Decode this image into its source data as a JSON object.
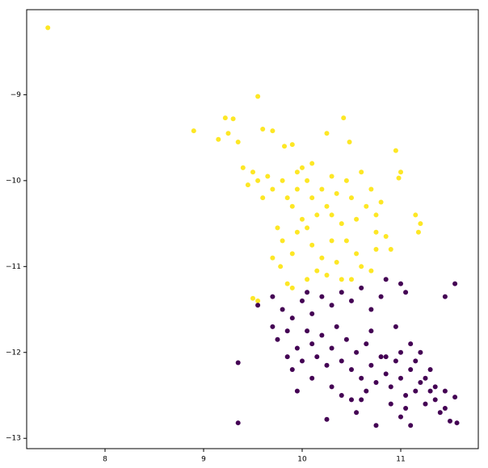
{
  "chart_data": {
    "type": "scatter",
    "xlim": [
      7.205,
      11.787
    ],
    "ylim": [
      -13.12,
      -8.01
    ],
    "xticks": [
      8,
      9,
      10,
      11
    ],
    "yticks": [
      {
        "value": -9,
        "label": "−9"
      },
      {
        "value": -10,
        "label": "−10"
      },
      {
        "value": -11,
        "label": "−11"
      },
      {
        "value": -12,
        "label": "−12"
      },
      {
        "value": -13,
        "label": "−13"
      }
    ],
    "series": [
      {
        "color": "#fde725",
        "x": [
          7.42,
          8.9,
          9.55,
          9.22,
          9.3,
          9.15,
          9.25,
          9.35,
          9.6,
          9.7,
          9.82,
          9.9,
          10.25,
          10.42,
          10.48,
          10.95,
          10.98,
          11.0,
          11.15,
          11.2,
          11.18,
          9.4,
          9.5,
          9.55,
          9.65,
          9.7,
          9.8,
          9.85,
          9.9,
          9.95,
          10.0,
          10.05,
          10.1,
          10.15,
          10.2,
          10.25,
          10.3,
          10.35,
          10.4,
          10.45,
          10.5,
          10.55,
          10.6,
          10.65,
          10.7,
          10.75,
          9.75,
          9.8,
          9.7,
          9.78,
          9.9,
          9.95,
          10.05,
          10.1,
          10.2,
          10.3,
          10.35,
          10.45,
          10.55,
          10.6,
          10.75,
          10.85,
          10.9,
          10.7,
          10.5,
          10.25,
          10.05,
          9.85,
          9.5,
          9.55,
          9.9,
          10.15,
          10.4,
          9.45,
          9.6,
          10.8,
          10.75,
          10.1,
          10.0,
          10.3,
          9.95
        ],
        "y": [
          -8.22,
          -9.42,
          -9.02,
          -9.27,
          -9.28,
          -9.52,
          -9.45,
          -9.55,
          -9.4,
          -9.42,
          -9.6,
          -9.58,
          -9.45,
          -9.27,
          -9.55,
          -9.65,
          -9.97,
          -9.9,
          -10.4,
          -10.5,
          -10.6,
          -9.85,
          -9.9,
          -10.0,
          -9.95,
          -10.1,
          -10.0,
          -10.2,
          -10.3,
          -10.1,
          -9.85,
          -10.0,
          -10.2,
          -10.4,
          -10.1,
          -10.3,
          -9.95,
          -10.15,
          -10.5,
          -10.0,
          -10.2,
          -10.45,
          -9.9,
          -10.3,
          -10.1,
          -10.6,
          -10.55,
          -10.7,
          -10.9,
          -11.0,
          -10.85,
          -10.6,
          -10.55,
          -10.75,
          -10.9,
          -10.7,
          -10.95,
          -10.7,
          -10.85,
          -11.0,
          -10.8,
          -10.65,
          -10.8,
          -11.05,
          -11.15,
          -11.1,
          -11.15,
          -11.2,
          -11.37,
          -11.4,
          -11.25,
          -11.05,
          -11.15,
          -10.05,
          -10.2,
          -10.25,
          -10.4,
          -9.8,
          -10.45,
          -10.4,
          -9.9
        ]
      },
      {
        "color": "#440154",
        "x": [
          9.35,
          9.35,
          9.55,
          9.7,
          9.8,
          9.9,
          10.0,
          10.05,
          10.1,
          10.2,
          10.3,
          10.4,
          10.5,
          10.6,
          10.7,
          10.8,
          10.85,
          11.0,
          11.05,
          11.45,
          11.55,
          9.7,
          9.75,
          9.85,
          9.9,
          9.95,
          10.0,
          10.05,
          10.1,
          10.15,
          10.2,
          10.25,
          10.3,
          10.35,
          10.4,
          10.45,
          10.5,
          10.55,
          10.6,
          10.65,
          10.7,
          10.75,
          10.8,
          10.85,
          10.9,
          10.95,
          11.0,
          11.05,
          11.1,
          11.15,
          11.2,
          11.25,
          11.3,
          11.35,
          11.4,
          11.45,
          11.5,
          11.55,
          11.57,
          11.45,
          10.25,
          10.75,
          11.0,
          11.1,
          10.5,
          10.3,
          10.1,
          9.95,
          10.6,
          10.9,
          11.3,
          10.95,
          11.1,
          11.2,
          11.25,
          11.0,
          10.7,
          10.4,
          9.85,
          11.35,
          10.55,
          10.85,
          11.15,
          10.65,
          11.05
        ],
        "y": [
          -12.12,
          -12.82,
          -11.45,
          -11.35,
          -11.5,
          -11.6,
          -11.4,
          -11.3,
          -11.55,
          -11.35,
          -11.45,
          -11.3,
          -11.4,
          -11.25,
          -11.5,
          -11.35,
          -11.15,
          -11.2,
          -11.3,
          -11.35,
          -11.2,
          -11.7,
          -11.85,
          -12.05,
          -12.2,
          -11.95,
          -12.1,
          -11.75,
          -11.9,
          -12.05,
          -11.8,
          -12.15,
          -11.95,
          -11.7,
          -12.1,
          -11.85,
          -12.2,
          -12.0,
          -12.3,
          -11.9,
          -12.15,
          -12.35,
          -12.05,
          -12.25,
          -12.4,
          -12.1,
          -12.3,
          -12.5,
          -12.2,
          -12.45,
          -12.35,
          -12.6,
          -12.45,
          -12.55,
          -12.7,
          -12.65,
          -12.8,
          -12.52,
          -12.82,
          -12.45,
          -12.78,
          -12.85,
          -12.75,
          -12.85,
          -12.55,
          -12.4,
          -12.3,
          -12.45,
          -12.55,
          -12.6,
          -12.2,
          -11.7,
          -11.9,
          -12.0,
          -12.3,
          -12.0,
          -11.75,
          -12.5,
          -11.75,
          -12.4,
          -12.7,
          -12.05,
          -12.1,
          -12.45,
          -12.65
        ]
      }
    ]
  }
}
